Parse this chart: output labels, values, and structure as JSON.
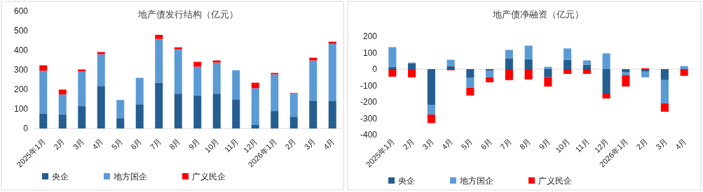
{
  "chart_data": [
    {
      "type": "bar",
      "title": "地产债发行结构（亿元）",
      "stacked": true,
      "legend": "bottom",
      "categories": [
        "2025年1月",
        "2月",
        "3月",
        "4月",
        "5月",
        "6月",
        "7月",
        "8月",
        "9月",
        "10月",
        "11月",
        "12月",
        "2026年1月",
        "2月",
        "3月",
        "4月"
      ],
      "ylim": [
        0,
        600
      ],
      "yticks": [
        0,
        100,
        200,
        300,
        400,
        500,
        600
      ],
      "series": [
        {
          "name": "央企",
          "color": "#255e91",
          "values": [
            75,
            71,
            114,
            217,
            53,
            124,
            234,
            178,
            170,
            178,
            149,
            18,
            89,
            60,
            142,
            142
          ]
        },
        {
          "name": "地方国企",
          "color": "#5b9bd5",
          "values": [
            220,
            103,
            177,
            163,
            93,
            135,
            224,
            227,
            146,
            159,
            149,
            188,
            188,
            118,
            206,
            291
          ]
        },
        {
          "name": "广义民企",
          "color": "#ff0000",
          "values": [
            28,
            25,
            11,
            11,
            null,
            null,
            21,
            10,
            25,
            11,
            null,
            28,
            7,
            3,
            14,
            11
          ]
        }
      ]
    },
    {
      "type": "bar",
      "title": "地产债净融资（亿元）",
      "stacked": true,
      "legend": "bottom",
      "categories": [
        "2025年1月",
        "2月",
        "3月",
        "4月",
        "5月",
        "6月",
        "7月",
        "8月",
        "9月",
        "10月",
        "11月",
        "12月",
        "2026年1月",
        "2月",
        "3月",
        "4月"
      ],
      "ylim": [
        -400,
        200
      ],
      "yticks": [
        -400,
        -300,
        -200,
        -100,
        0,
        100,
        200
      ],
      "series": [
        {
          "name": "央企",
          "color": "#255e91",
          "values": [
            14,
            36,
            -217,
            19,
            -54,
            -11,
            66,
            61,
            -49,
            57,
            27,
            -149,
            -20,
            -16,
            -67,
            null
          ]
        },
        {
          "name": "地方国企",
          "color": "#5b9bd5",
          "values": [
            120,
            4,
            -60,
            38,
            -60,
            -39,
            51,
            82,
            14,
            69,
            26,
            96,
            -17,
            -34,
            -142,
            19
          ]
        },
        {
          "name": "广义民企",
          "color": "#ff0000",
          "values": [
            -46,
            -50,
            -52,
            -7,
            -47,
            -30,
            -67,
            -63,
            -57,
            -29,
            -29,
            -30,
            -69,
            5,
            -51,
            -41
          ]
        }
      ]
    }
  ]
}
